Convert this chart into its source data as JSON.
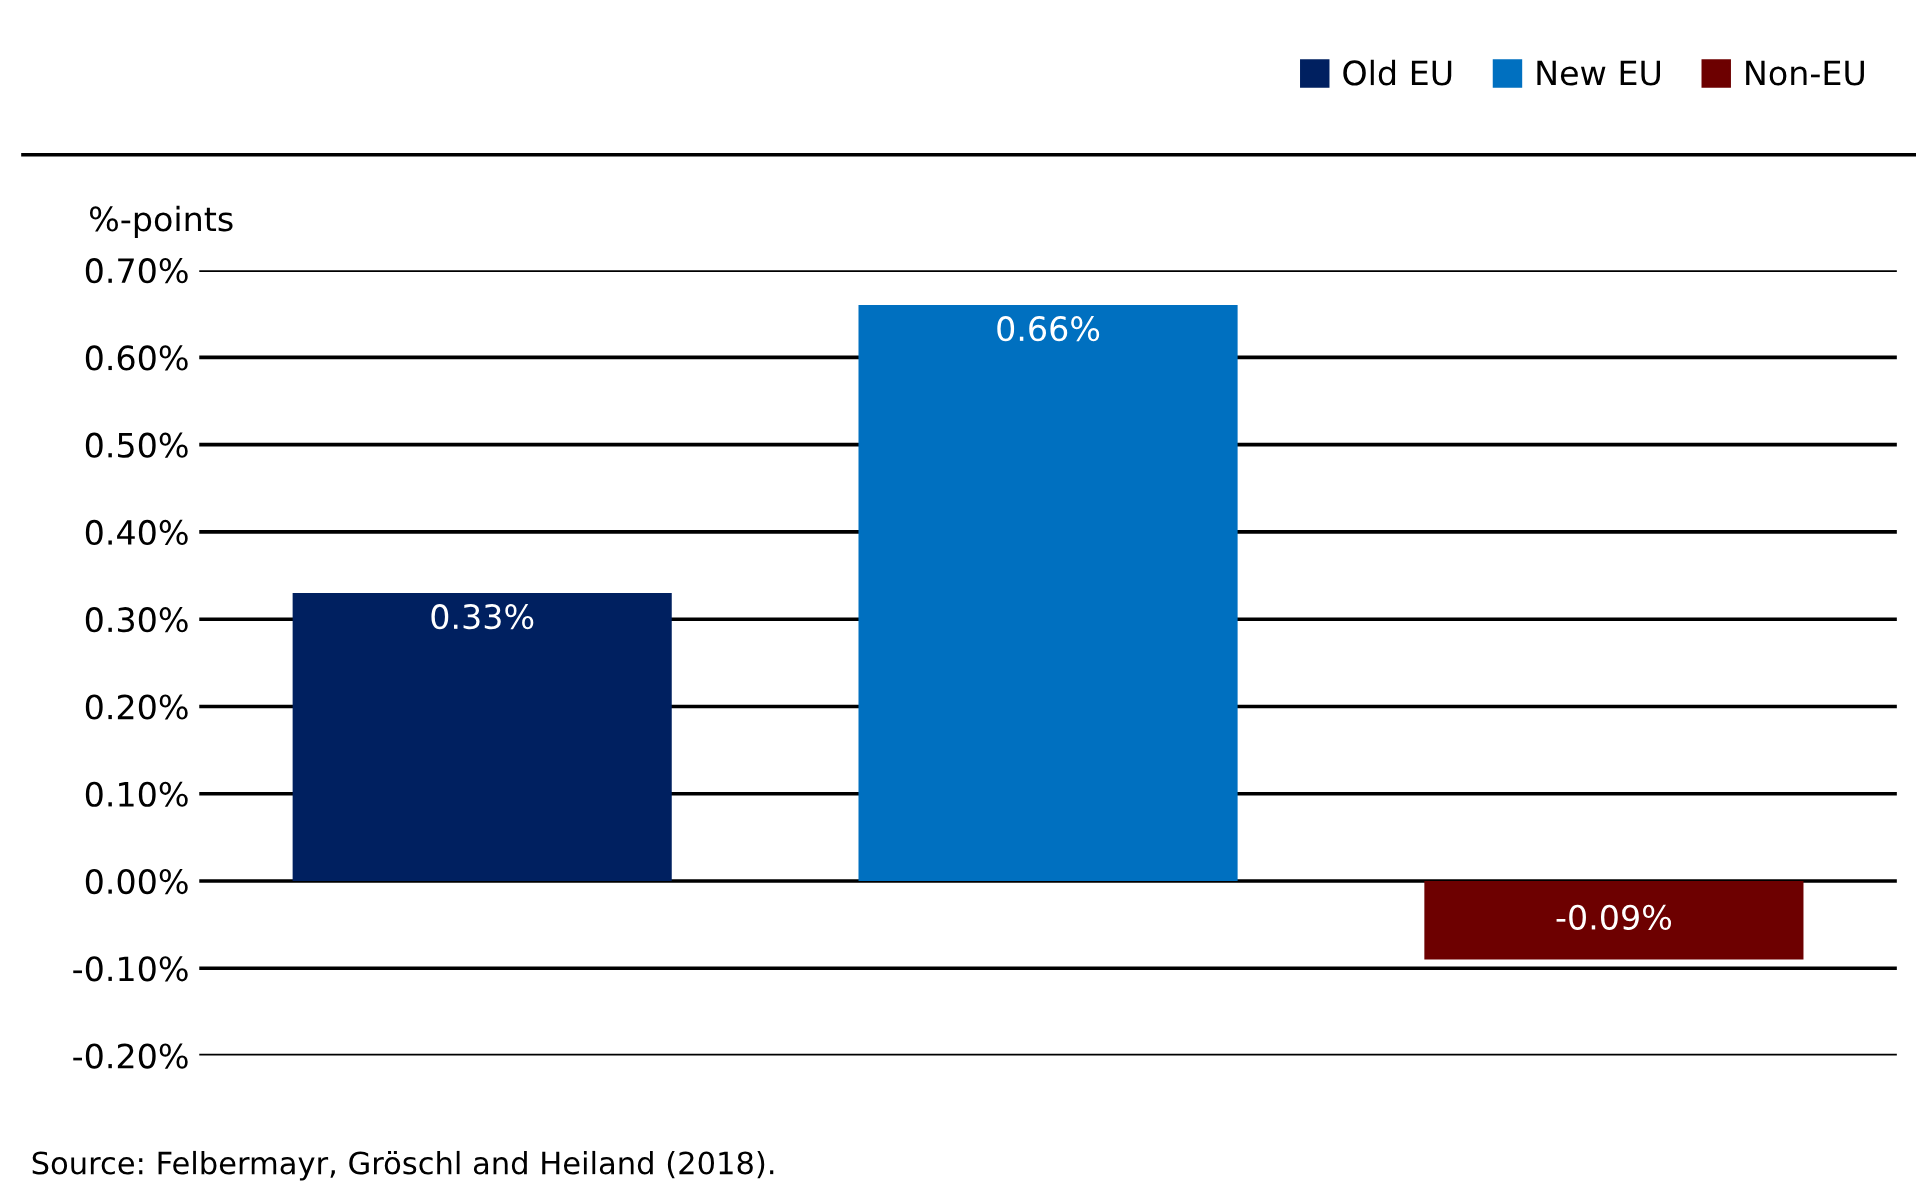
{
  "chart_data": {
    "type": "bar",
    "stacked": true,
    "ylabel": "%-points",
    "categories": [
      null,
      null,
      null
    ],
    "series": [
      {
        "name": "Old EU",
        "color": "#002060",
        "values": [
          0.33,
          null,
          null
        ],
        "value_labels": [
          "0.33%",
          null,
          null
        ]
      },
      {
        "name": "New EU",
        "color": "#0070c0",
        "values": [
          null,
          0.66,
          null
        ],
        "value_labels": [
          null,
          "0.66%",
          null
        ]
      },
      {
        "name": "Non-EU",
        "color": "#6d0000",
        "values": [
          null,
          null,
          -0.09
        ],
        "value_labels": [
          null,
          null,
          "-0.09%"
        ]
      }
    ],
    "ylim": [
      -0.2,
      0.7
    ],
    "yticks": [
      {
        "value": -0.2,
        "label": "-0.20%"
      },
      {
        "value": -0.1,
        "label": "-0.10%"
      },
      {
        "value": 0,
        "label": "0.00%"
      },
      {
        "value": 0.1,
        "label": "0.10%"
      },
      {
        "value": 0.2,
        "label": "0.20%"
      },
      {
        "value": 0.3,
        "label": "0.30%"
      },
      {
        "value": 0.4,
        "label": "0.40%"
      },
      {
        "value": 0.5,
        "label": "0.50%"
      },
      {
        "value": 0.6,
        "label": "0.60%"
      },
      {
        "value": 0.7,
        "label": "0.70%"
      }
    ],
    "grid": "y",
    "legend": "top right",
    "annotations": [
      "Source: Felbermayr, Gröschl and Heiland (2018)."
    ]
  }
}
